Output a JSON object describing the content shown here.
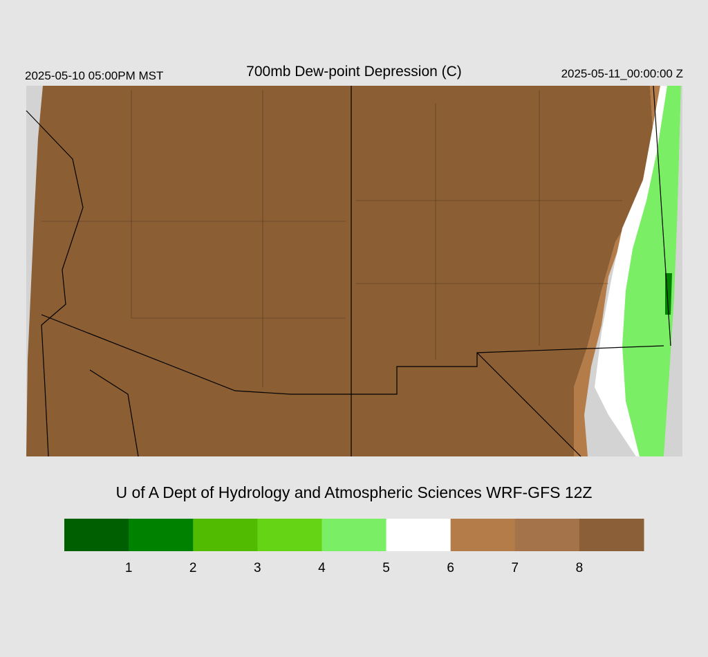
{
  "header": {
    "valid_local": "2025-05-10 05:00PM MST",
    "title": "700mb Dew-point Depression (C)",
    "valid_utc": "2025-05-11_00:00:00 Z"
  },
  "credit": "U of A Dept of Hydrology and Atmospheric Sciences WRF-GFS 12Z",
  "colorbar": {
    "colors": [
      "#005f00",
      "#008200",
      "#50bb00",
      "#64d414",
      "#7aee64",
      "#ffffff",
      "#b37c48",
      "#a47349",
      "#8b6039"
    ],
    "ticks": [
      1,
      2,
      3,
      4,
      5,
      6,
      7,
      8
    ]
  }
}
